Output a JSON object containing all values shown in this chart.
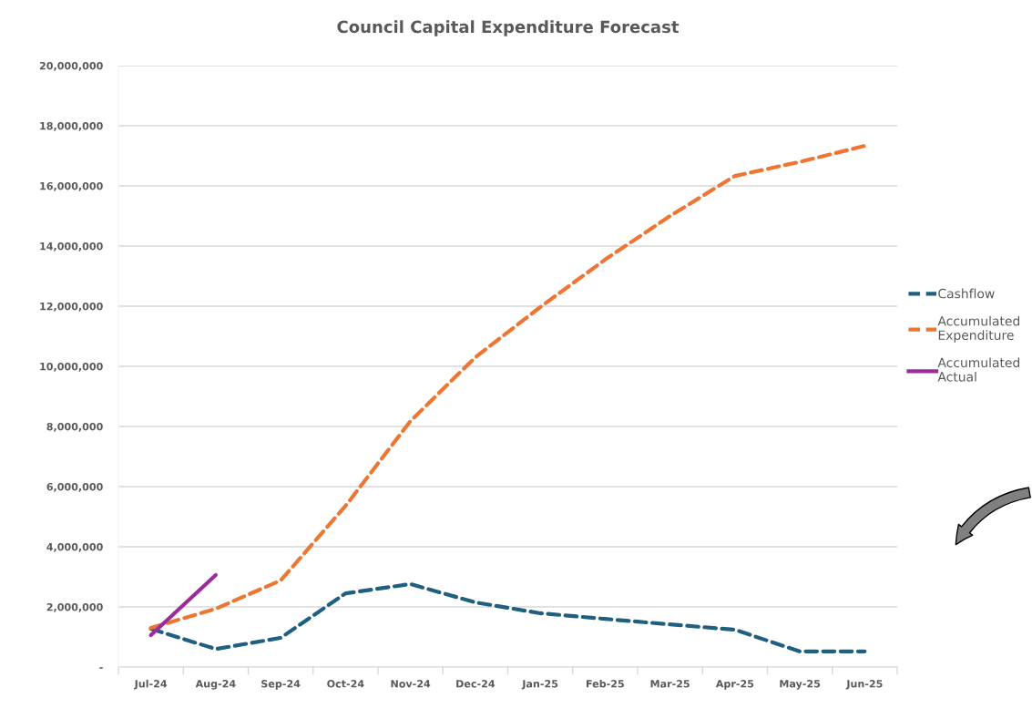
{
  "chart_data": {
    "type": "line",
    "title": "Council Capital Expenditure Forecast",
    "categories": [
      "Jul-24",
      "Aug-24",
      "Sep-24",
      "Oct-24",
      "Nov-24",
      "Dec-24",
      "Jan-25",
      "Feb-25",
      "Mar-25",
      "Apr-25",
      "May-25",
      "Jun-25"
    ],
    "series": [
      {
        "name": "Cashflow",
        "color": "#1f5f7f",
        "line_style": "dashed",
        "values": [
          1270000,
          600000,
          970000,
          2450000,
          2760000,
          2150000,
          1790000,
          1600000,
          1420000,
          1240000,
          520000,
          520000
        ]
      },
      {
        "name": "Accumulated Expenditure",
        "color": "#ed7633",
        "line_style": "dashed",
        "values": [
          1300000,
          1940000,
          2880000,
          5360000,
          8180000,
          10300000,
          11970000,
          13550000,
          15000000,
          16330000,
          16800000,
          17330000
        ]
      },
      {
        "name": "Accumulated Actual",
        "color": "#9b2d9b",
        "line_style": "solid",
        "values": [
          1060000,
          3060000,
          null,
          null,
          null,
          null,
          null,
          null,
          null,
          null,
          null,
          null
        ]
      }
    ],
    "ylim": [
      0,
      20000000
    ],
    "yticks": [
      {
        "value": 0,
        "label": "-"
      },
      {
        "value": 2000000,
        "label": "2,000,000"
      },
      {
        "value": 4000000,
        "label": "4,000,000"
      },
      {
        "value": 6000000,
        "label": "6,000,000"
      },
      {
        "value": 8000000,
        "label": "8,000,000"
      },
      {
        "value": 10000000,
        "label": "10,000,000"
      },
      {
        "value": 12000000,
        "label": "12,000,000"
      },
      {
        "value": 14000000,
        "label": "14,000,000"
      },
      {
        "value": 16000000,
        "label": "16,000,000"
      },
      {
        "value": 18000000,
        "label": "18,000,000"
      },
      {
        "value": 20000000,
        "label": "20,000,000"
      }
    ],
    "grid": "y",
    "legend": "right",
    "marker": "none"
  }
}
